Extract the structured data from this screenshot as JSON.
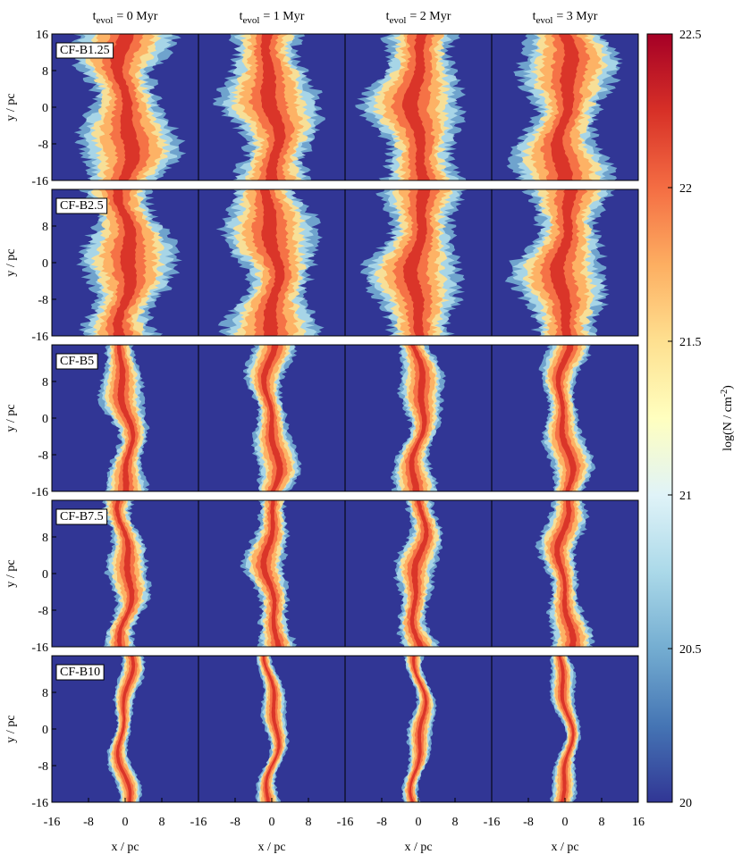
{
  "chart_data": {
    "type": "image-grid",
    "columns": [
      {
        "symbol": "t",
        "subscript": "evol",
        "text": "= 0 Myr"
      },
      {
        "symbol": "t",
        "subscript": "evol",
        "text": "= 1 Myr"
      },
      {
        "symbol": "t",
        "subscript": "evol",
        "text": "= 2 Myr"
      },
      {
        "symbol": "t",
        "subscript": "evol",
        "text": "= 3 Myr"
      }
    ],
    "rows": [
      {
        "label": "CF-B1.25",
        "yticks": [
          -16,
          -8,
          0,
          8,
          16
        ]
      },
      {
        "label": "CF-B2.5",
        "yticks": [
          -16,
          -8,
          0,
          8
        ]
      },
      {
        "label": "CF-B5",
        "yticks": [
          -16,
          -8,
          0,
          8
        ]
      },
      {
        "label": "CF-B7.5",
        "yticks": [
          -16,
          -8,
          0,
          8
        ]
      },
      {
        "label": "CF-B10",
        "yticks": [
          -16,
          -8,
          0,
          8
        ]
      }
    ],
    "xlim": [
      -16,
      16
    ],
    "ylim": [
      -16,
      16
    ],
    "column_xticks": [
      [
        -16,
        -8,
        0,
        8
      ],
      [
        -16,
        -8,
        0,
        8
      ],
      [
        -16,
        -8,
        0,
        8
      ],
      [
        -16,
        -8,
        0,
        8,
        16
      ]
    ],
    "x_label": "x / pc",
    "y_label": "y / pc",
    "colorbar": {
      "label": "log(N / cm",
      "superscript": "-2",
      "label_end": ")",
      "lim": [
        20,
        22.5
      ],
      "ticks": [
        20,
        20.5,
        21,
        21.5,
        22,
        22.5
      ]
    }
  }
}
